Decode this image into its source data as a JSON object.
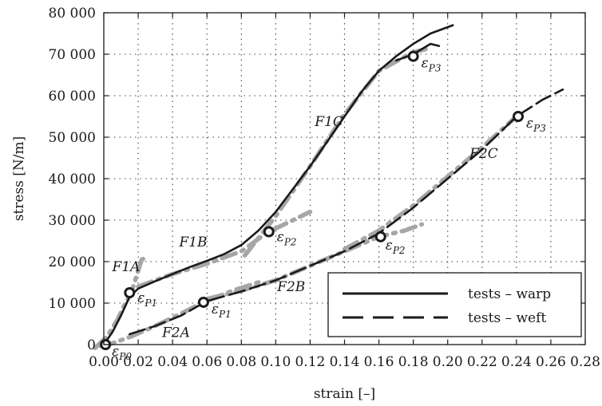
{
  "chart_data": {
    "type": "line",
    "xlabel": "strain [–]",
    "ylabel": "stress [N/m]",
    "xlim": [
      0,
      0.28
    ],
    "ylim": [
      0,
      80000
    ],
    "x_ticks": [
      0,
      0.02,
      0.04,
      0.06,
      0.08,
      0.1,
      0.12,
      0.14,
      0.16,
      0.18,
      0.2,
      0.22,
      0.24,
      0.26,
      0.28
    ],
    "x_tick_labels": [
      "0.00",
      "0.02",
      "0.04",
      "0.06",
      "0.08",
      "0.10",
      "0.12",
      "0.14",
      "0.16",
      "0.18",
      "0.20",
      "0.22",
      "0.24",
      "0.26",
      "0.28"
    ],
    "y_ticks": [
      0,
      10000,
      20000,
      30000,
      40000,
      50000,
      60000,
      70000,
      80000
    ],
    "y_tick_labels": [
      "0",
      "10 000",
      "20 000",
      "30 000",
      "40 000",
      "50 000",
      "60 000",
      "70 000",
      "80 000"
    ],
    "grid": true,
    "legend_position": "bottom-right",
    "legend": [
      {
        "label": "tests – warp",
        "style": "solid",
        "color": "#1a1a1a"
      },
      {
        "label": "tests – weft",
        "style": "dashed",
        "color": "#1a1a1a"
      }
    ],
    "series": [
      {
        "name": "tests – warp",
        "style": "solid",
        "color": "#1a1a1a",
        "points": [
          [
            0,
            0
          ],
          [
            0.005,
            3000
          ],
          [
            0.01,
            7000
          ],
          [
            0.015,
            11500
          ],
          [
            0.02,
            13500
          ],
          [
            0.03,
            15300
          ],
          [
            0.04,
            17000
          ],
          [
            0.05,
            18700
          ],
          [
            0.06,
            20200
          ],
          [
            0.07,
            21800
          ],
          [
            0.08,
            24000
          ],
          [
            0.09,
            27500
          ],
          [
            0.1,
            32000
          ],
          [
            0.11,
            37500
          ],
          [
            0.12,
            43000
          ],
          [
            0.13,
            49000
          ],
          [
            0.14,
            55000
          ],
          [
            0.15,
            61000
          ],
          [
            0.16,
            66000
          ],
          [
            0.17,
            69500
          ],
          [
            0.18,
            72500
          ],
          [
            0.19,
            75000
          ],
          [
            0.203,
            77000
          ]
        ]
      },
      {
        "name": "tests – warp",
        "style": "solid",
        "color": "#1a1a1a",
        "points": [
          [
            0.17,
            68500
          ],
          [
            0.18,
            70000
          ],
          [
            0.19,
            72500
          ],
          [
            0.195,
            72000
          ]
        ]
      },
      {
        "name": "tests – weft",
        "style": "dashed",
        "color": "#1a1a1a",
        "points": [
          [
            0.015,
            2500
          ],
          [
            0.03,
            4500
          ],
          [
            0.045,
            7000
          ],
          [
            0.06,
            10500
          ],
          [
            0.08,
            12800
          ],
          [
            0.1,
            15500
          ],
          [
            0.12,
            19000
          ],
          [
            0.14,
            22500
          ],
          [
            0.16,
            26800
          ],
          [
            0.18,
            33000
          ],
          [
            0.2,
            40000
          ],
          [
            0.22,
            47000
          ],
          [
            0.24,
            55000
          ],
          [
            0.255,
            59000
          ],
          [
            0.267,
            61500
          ]
        ]
      },
      {
        "name": "F1A",
        "style": "dash-dot",
        "color": "#a6a6a6",
        "points": [
          [
            -0.005,
            -800
          ],
          [
            0.002,
            2000
          ],
          [
            0.008,
            6000
          ],
          [
            0.012,
            9500
          ],
          [
            0.016,
            12500
          ],
          [
            0.019,
            16500
          ],
          [
            0.022,
            20500
          ],
          [
            0.025,
            21000
          ]
        ]
      },
      {
        "name": "F1B",
        "style": "dash-dot",
        "color": "#a6a6a6",
        "points": [
          [
            0.02,
            14000
          ],
          [
            0.04,
            17000
          ],
          [
            0.06,
            19500
          ],
          [
            0.08,
            22500
          ],
          [
            0.095,
            27000
          ],
          [
            0.11,
            30000
          ],
          [
            0.12,
            32000
          ]
        ]
      },
      {
        "name": "F1C",
        "style": "dash-dot",
        "color": "#a6a6a6",
        "points": [
          [
            0.082,
            21500
          ],
          [
            0.1,
            31000
          ],
          [
            0.12,
            43000
          ],
          [
            0.14,
            55500
          ],
          [
            0.16,
            66000
          ],
          [
            0.18,
            70500
          ],
          [
            0.19,
            71500
          ]
        ]
      },
      {
        "name": "F2A",
        "style": "dash-dot",
        "color": "#a6a6a6",
        "points": [
          [
            -0.002,
            -300
          ],
          [
            0.005,
            300
          ],
          [
            0.015,
            1800
          ],
          [
            0.03,
            4500
          ],
          [
            0.045,
            7500
          ],
          [
            0.058,
            10200
          ],
          [
            0.075,
            13000
          ],
          [
            0.09,
            15000
          ]
        ]
      },
      {
        "name": "F2B",
        "style": "dash-dot",
        "color": "#a6a6a6",
        "points": [
          [
            0.06,
            11000
          ],
          [
            0.08,
            13000
          ],
          [
            0.1,
            15500
          ],
          [
            0.12,
            19000
          ],
          [
            0.14,
            22500
          ],
          [
            0.16,
            26000
          ],
          [
            0.175,
            27500
          ],
          [
            0.185,
            29000
          ]
        ]
      },
      {
        "name": "F2C",
        "style": "dash-dot",
        "color": "#a6a6a6",
        "points": [
          [
            0.14,
            23000
          ],
          [
            0.16,
            27500
          ],
          [
            0.18,
            33500
          ],
          [
            0.2,
            40500
          ],
          [
            0.22,
            47500
          ],
          [
            0.24,
            55000
          ]
        ]
      }
    ],
    "markers": [
      {
        "x": 0.001,
        "y": 0,
        "label": "εP0"
      },
      {
        "x": 0.015,
        "y": 12500,
        "label": "εP1"
      },
      {
        "x": 0.058,
        "y": 10200,
        "label": "εP1"
      },
      {
        "x": 0.096,
        "y": 27200,
        "label": "εP2"
      },
      {
        "x": 0.161,
        "y": 26000,
        "label": "εP2"
      },
      {
        "x": 0.18,
        "y": 69500,
        "label": "εP3"
      },
      {
        "x": 0.241,
        "y": 55000,
        "label": "εP3"
      }
    ],
    "annotations": [
      {
        "text": "F1A",
        "x": 0.013,
        "y": 17700
      },
      {
        "text": "F1B",
        "x": 0.052,
        "y": 23700
      },
      {
        "text": "F1C",
        "x": 0.131,
        "y": 52700
      },
      {
        "text": "F2A",
        "x": 0.042,
        "y": 1800
      },
      {
        "text": "F2B",
        "x": 0.109,
        "y": 12900
      },
      {
        "text": "F2C",
        "x": 0.221,
        "y": 45000
      }
    ]
  }
}
